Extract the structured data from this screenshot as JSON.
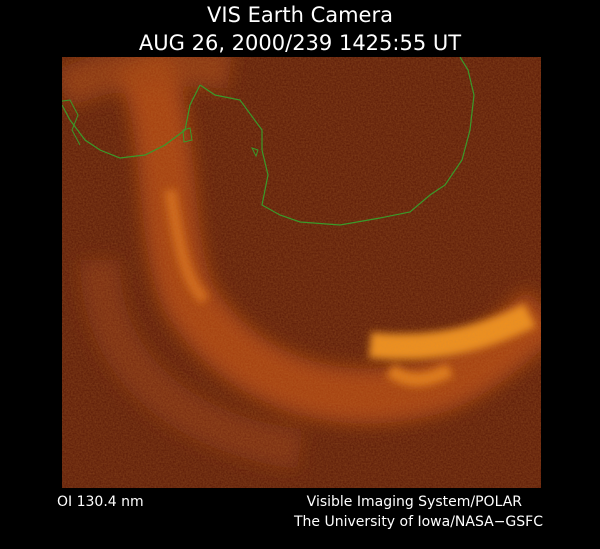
{
  "header": {
    "title": "VIS Earth Camera",
    "subtitle": "AUG 26, 2000/239 1425:55 UT"
  },
  "footer": {
    "filter": "OI  130.4 nm",
    "credit_1": "Visible Imaging System/POLAR",
    "credit_2": "The University of Iowa/NASA−GSFC"
  }
}
